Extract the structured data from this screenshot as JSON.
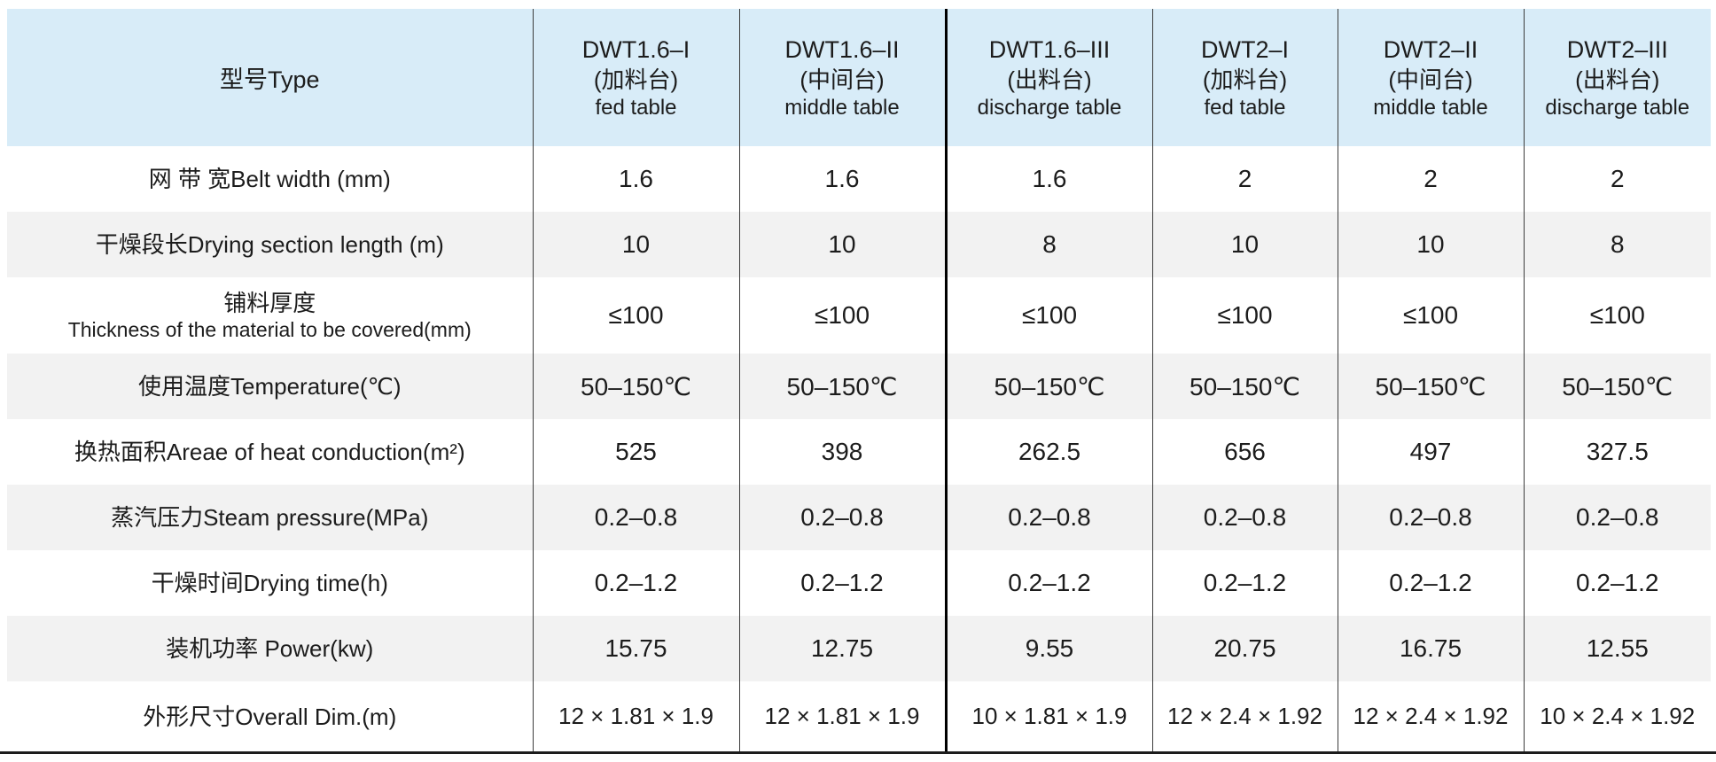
{
  "table": {
    "header": {
      "type_label": "型号Type",
      "columns": [
        {
          "model": "DWT1.6–I",
          "cn": "(加料台)",
          "en": "fed table"
        },
        {
          "model": "DWT1.6–II",
          "cn": "(中间台)",
          "en": "middle table"
        },
        {
          "model": "DWT1.6–III",
          "cn": "(出料台)",
          "en": "discharge table"
        },
        {
          "model": "DWT2–I",
          "cn": "(加料台)",
          "en": "fed table"
        },
        {
          "model": "DWT2–II",
          "cn": "(中间台)",
          "en": "middle table"
        },
        {
          "model": "DWT2–III",
          "cn": "(出料台)",
          "en": "discharge table"
        }
      ]
    },
    "rows": [
      {
        "name": "belt-width",
        "label": "网 带 宽Belt width (mm)",
        "values": [
          "1.6",
          "1.6",
          "1.6",
          "2",
          "2",
          "2"
        ]
      },
      {
        "name": "drying-section-length",
        "label": "干燥段长Drying section length (m)",
        "values": [
          "10",
          "10",
          "8",
          "10",
          "10",
          "8"
        ]
      },
      {
        "name": "material-thickness",
        "label_lines": [
          "铺料厚度",
          "Thickness of the material to be covered(mm)"
        ],
        "values": [
          "≤100",
          "≤100",
          "≤100",
          "≤100",
          "≤100",
          "≤100"
        ]
      },
      {
        "name": "temperature",
        "label": "使用温度Temperature(℃)",
        "values": [
          "50–150℃",
          "50–150℃",
          "50–150℃",
          "50–150℃",
          "50–150℃",
          "50–150℃"
        ]
      },
      {
        "name": "heat-conduction-area",
        "label": "换热面积Areae of heat conduction(m²)",
        "values": [
          "525",
          "398",
          "262.5",
          "656",
          "497",
          "327.5"
        ]
      },
      {
        "name": "steam-pressure",
        "label": "蒸汽压力Steam pressure(MPa)",
        "values": [
          "0.2–0.8",
          "0.2–0.8",
          "0.2–0.8",
          "0.2–0.8",
          "0.2–0.8",
          "0.2–0.8"
        ]
      },
      {
        "name": "drying-time",
        "label": "干燥时间Drying time(h)",
        "values": [
          "0.2–1.2",
          "0.2–1.2",
          "0.2–1.2",
          "0.2–1.2",
          "0.2–1.2",
          "0.2–1.2"
        ]
      },
      {
        "name": "power",
        "label": "装机功率 Power(kw)",
        "values": [
          "15.75",
          "12.75",
          "9.55",
          "20.75",
          "16.75",
          "12.55"
        ]
      },
      {
        "name": "overall-dim",
        "label": "外形尺寸Overall Dim.(m)",
        "values": [
          "12 × 1.81 × 1.9",
          "12 × 1.81 × 1.9",
          "10 × 1.81 × 1.9",
          "12 × 2.4 × 1.92",
          "12 × 2.4 × 1.92",
          "10 × 2.4 × 1.92"
        ]
      }
    ]
  },
  "colors": {
    "header_background": "#d8ecf8",
    "stripe_background": "#f2f2f2",
    "grid_rule": "#3c3c3c",
    "heavy_rule": "#000000",
    "text": "#1c1c1c"
  }
}
